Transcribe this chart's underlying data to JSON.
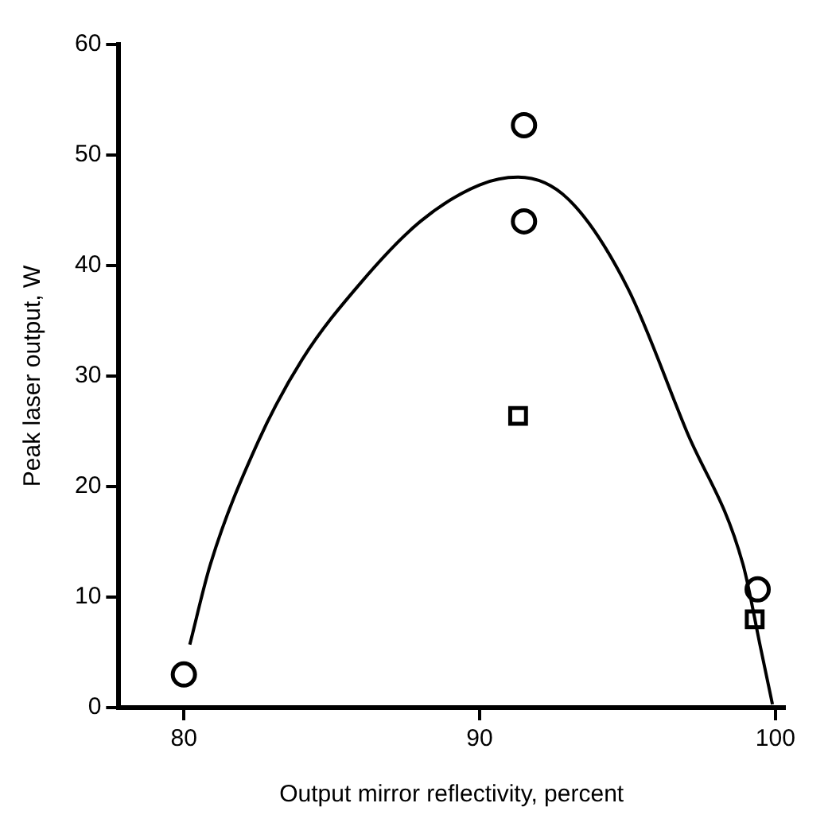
{
  "chart_data": {
    "type": "scatter",
    "xlabel": "Output mirror reflectivity, percent",
    "ylabel": "Peak laser output, W",
    "xlim": [
      77.8,
      100.3
    ],
    "xticks": [
      80,
      90,
      100
    ],
    "ylim": [
      0,
      60
    ],
    "yticks": [
      0,
      10,
      20,
      30,
      40,
      50,
      60
    ],
    "grid": false,
    "legend": false,
    "series": [
      {
        "type": "scatter",
        "marker": "circle",
        "color": "#000000",
        "x": [
          80,
          91.5,
          91.5,
          99.4
        ],
        "values": [
          3,
          52.7,
          44,
          10.7
        ]
      },
      {
        "type": "scatter",
        "marker": "square",
        "color": "#000000",
        "x": [
          91.3,
          99.3
        ],
        "values": [
          26.4,
          8
        ]
      },
      {
        "type": "line",
        "marker": "none",
        "line_style": "solid",
        "color": "#000000",
        "x": [
          80.2,
          80.9,
          82.5,
          84,
          86,
          88,
          90,
          91.3,
          93,
          95,
          97,
          98.9,
          99.5,
          99.9
        ],
        "values": [
          5.7,
          13,
          24,
          31.5,
          38.5,
          44,
          47.3,
          48,
          46,
          38,
          25,
          13,
          5.4,
          0.3
        ]
      }
    ]
  }
}
